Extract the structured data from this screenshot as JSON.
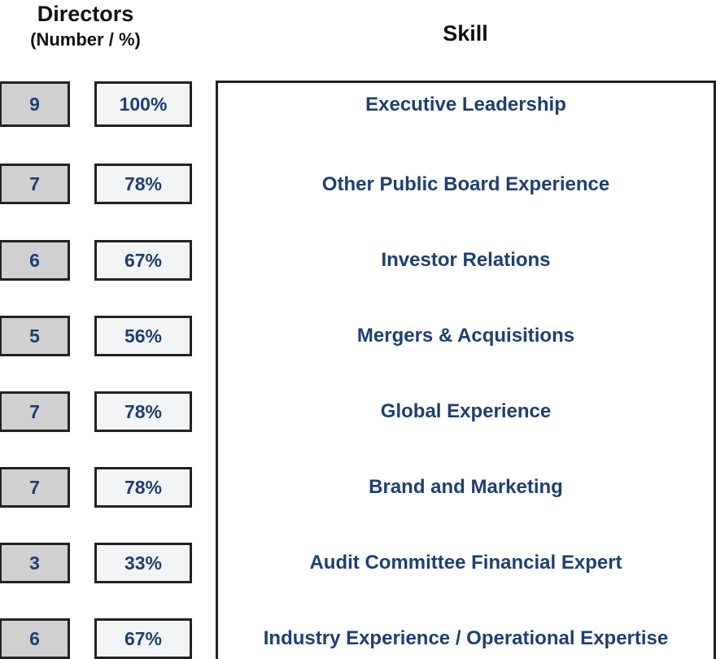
{
  "header": {
    "directors": "Directors",
    "directors_sub": "(Number / %)",
    "skill": "Skill"
  },
  "rows": [
    {
      "number": "9",
      "percent": "100%",
      "skill": "Executive Leadership"
    },
    {
      "number": "7",
      "percent": "78%",
      "skill": "Other Public Board Experience"
    },
    {
      "number": "6",
      "percent": "67%",
      "skill": "Investor Relations"
    },
    {
      "number": "5",
      "percent": "56%",
      "skill": "Mergers & Acquisitions"
    },
    {
      "number": "7",
      "percent": "78%",
      "skill": "Global Experience"
    },
    {
      "number": "7",
      "percent": "78%",
      "skill": "Brand and Marketing"
    },
    {
      "number": "3",
      "percent": "33%",
      "skill": "Audit Committee Financial Expert"
    },
    {
      "number": "6",
      "percent": "67%",
      "skill": "Industry Experience / Operational Expertise"
    }
  ],
  "colors": {
    "text_accent": "#1f3f73",
    "number_fill": "#d0d0d0",
    "percent_fill": "#f3f4f5",
    "border": "#222222"
  }
}
